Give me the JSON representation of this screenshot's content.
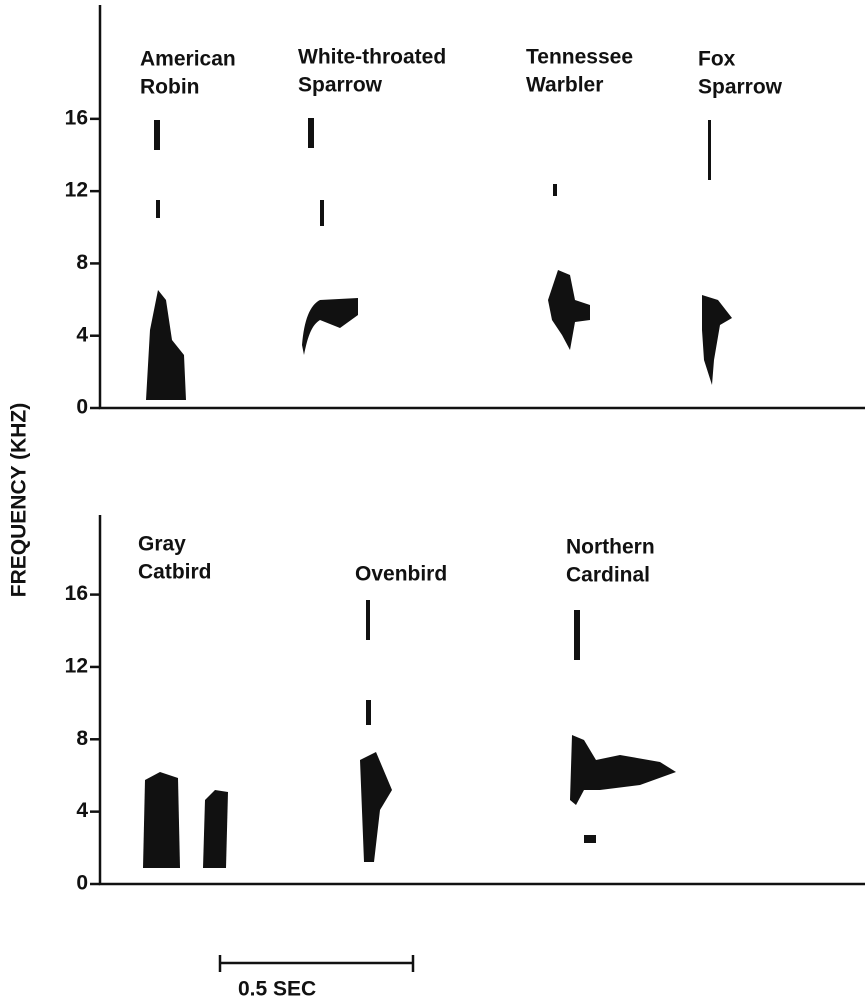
{
  "y_axis_label": "FREQUENCY (KHZ)",
  "panels": [
    {
      "ylim": [
        0,
        22.3
      ],
      "yticks": [
        0,
        4,
        8,
        12,
        16
      ],
      "species": [
        [
          "American",
          "Robin"
        ],
        [
          "White-throated",
          "Sparrow"
        ],
        [
          "Tennessee",
          "Warbler"
        ],
        [
          "Fox",
          "Sparrow"
        ]
      ]
    },
    {
      "ylim": [
        0,
        20.4
      ],
      "yticks": [
        0,
        4,
        8,
        12,
        16
      ],
      "species": [
        [
          "Gray",
          "Catbird"
        ],
        [
          "Ovenbird"
        ],
        [
          "Northern",
          "Cardinal"
        ]
      ]
    }
  ],
  "scale_bar_label": "0.5 SEC"
}
